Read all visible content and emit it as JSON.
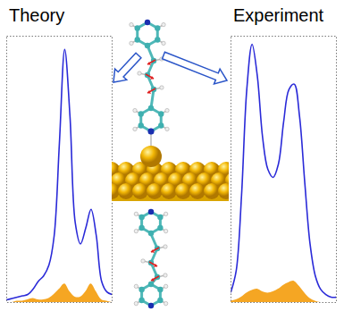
{
  "chart_data": [
    {
      "type": "line",
      "title": "Theory",
      "tick_labels": false,
      "x": [
        0,
        5,
        10,
        15,
        20,
        25,
        30,
        35,
        40,
        45,
        50,
        55,
        60,
        65,
        70,
        75,
        80,
        85,
        90,
        95,
        100
      ],
      "xlim": [
        0,
        100
      ],
      "ylim": [
        0,
        100
      ],
      "series": [
        {
          "color": "#2a2ad8",
          "values": [
            1,
            1.5,
            2,
            2.5,
            3,
            5,
            8,
            10,
            14,
            25,
            60,
            95,
            70,
            30,
            22,
            28,
            35,
            25,
            8,
            4,
            3
          ]
        },
        {
          "type": "area",
          "color": "#f5a623",
          "values": [
            0,
            0,
            0.5,
            0.5,
            1,
            1.5,
            1,
            1,
            1.5,
            3,
            5,
            7,
            4,
            2,
            2,
            4,
            7,
            4,
            1,
            0.5,
            0
          ]
        }
      ]
    },
    {
      "type": "line",
      "title": "Experiment",
      "tick_labels": false,
      "x": [
        0,
        5,
        10,
        15,
        20,
        25,
        30,
        35,
        40,
        45,
        50,
        55,
        60,
        65,
        70,
        75,
        80,
        85,
        90,
        95,
        100
      ],
      "xlim": [
        0,
        100
      ],
      "ylim": [
        0,
        100
      ],
      "series": [
        {
          "color": "#2a2ad8",
          "values": [
            4,
            12,
            40,
            80,
            97,
            85,
            62,
            50,
            47,
            52,
            68,
            80,
            82,
            70,
            45,
            22,
            10,
            5,
            3,
            2,
            2
          ]
        },
        {
          "type": "area",
          "color": "#f5a623",
          "values": [
            0.5,
            1,
            2,
            3.5,
            4.5,
            5,
            4,
            3.5,
            4,
            5,
            6.5,
            7.5,
            8,
            6,
            3.5,
            1.5,
            0.5,
            0,
            0,
            0,
            0
          ]
        }
      ]
    }
  ]
}
